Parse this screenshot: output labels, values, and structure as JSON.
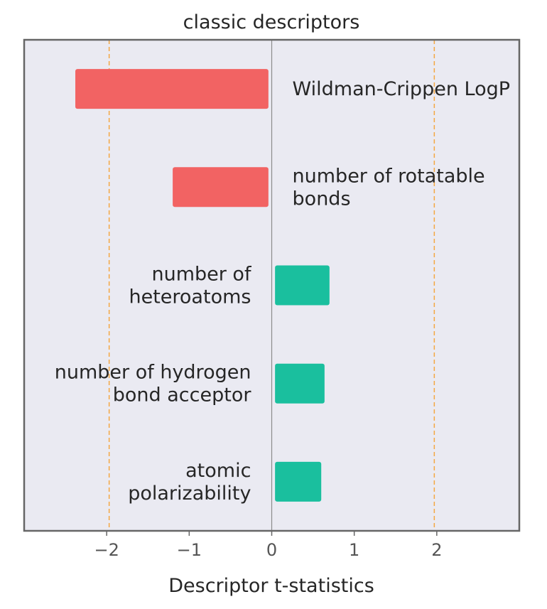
{
  "chart_data": {
    "type": "bar",
    "orientation": "horizontal",
    "title": "classic descriptors",
    "xlabel": "Descriptor t-statistics",
    "xlim": [
      -3,
      3
    ],
    "xticks": [
      -2,
      -1,
      0,
      1,
      2
    ],
    "xtick_labels": [
      "−2",
      "−1",
      "0",
      "1",
      "2"
    ],
    "reference_lines": [
      -1.97,
      1.97
    ],
    "grid": false,
    "categories": [
      [
        "Wildman-Crippen LogP"
      ],
      [
        "number of rotatable",
        "bonds"
      ],
      [
        "number of",
        "heteroatoms"
      ],
      [
        "number of hydrogen",
        "bond acceptor"
      ],
      [
        "atomic",
        "polarizability"
      ]
    ],
    "values": [
      -2.38,
      -1.2,
      0.7,
      0.64,
      0.6
    ],
    "colors": {
      "negative": "#f26363",
      "positive": "#1abf9e",
      "background": "#eaeaf2",
      "reference_line": "#f5a742",
      "zero_line": "#8c8c8c",
      "frame": "#666666"
    }
  }
}
